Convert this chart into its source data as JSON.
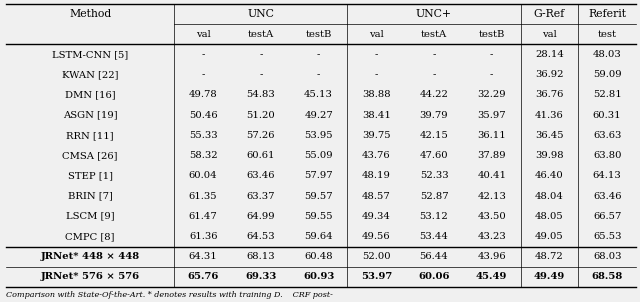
{
  "caption": "Comparison with State-Of-the-Art. * denotes results with training D.    CRF post-",
  "rows": [
    [
      "LSTM-CNN [5]",
      "-",
      "-",
      "-",
      "-",
      "-",
      "-",
      "28.14",
      "48.03"
    ],
    [
      "KWAN [22]",
      "-",
      "-",
      "-",
      "-",
      "-",
      "-",
      "36.92",
      "59.09"
    ],
    [
      "DMN [16]",
      "49.78",
      "54.83",
      "45.13",
      "38.88",
      "44.22",
      "32.29",
      "36.76",
      "52.81"
    ],
    [
      "ASGN [19]",
      "50.46",
      "51.20",
      "49.27",
      "38.41",
      "39.79",
      "35.97",
      "41.36",
      "60.31"
    ],
    [
      "RRN [11]",
      "55.33",
      "57.26",
      "53.95",
      "39.75",
      "42.15",
      "36.11",
      "36.45",
      "63.63"
    ],
    [
      "CMSA [26]",
      "58.32",
      "60.61",
      "55.09",
      "43.76",
      "47.60",
      "37.89",
      "39.98",
      "63.80"
    ],
    [
      "STEP [1]",
      "60.04",
      "63.46",
      "57.97",
      "48.19",
      "52.33",
      "40.41",
      "46.40",
      "64.13"
    ],
    [
      "BRIN [7]",
      "61.35",
      "63.37",
      "59.57",
      "48.57",
      "52.87",
      "42.13",
      "48.04",
      "63.46"
    ],
    [
      "LSCM [9]",
      "61.47",
      "64.99",
      "59.55",
      "49.34",
      "53.12",
      "43.50",
      "48.05",
      "66.57"
    ],
    [
      "CMPC [8]",
      "61.36",
      "64.53",
      "59.64",
      "49.56",
      "53.44",
      "43.23",
      "49.05",
      "65.53"
    ],
    [
      "JRNet* 448 × 448",
      "64.31",
      "68.13",
      "60.48",
      "52.00",
      "56.44",
      "43.96",
      "48.72",
      "68.03"
    ],
    [
      "JRNet* 576 × 576",
      "65.76",
      "69.33",
      "60.93",
      "53.97",
      "60.06",
      "45.49",
      "49.49",
      "68.58"
    ]
  ],
  "col_widths_ratio": [
    2.1,
    0.72,
    0.72,
    0.72,
    0.72,
    0.72,
    0.72,
    0.72,
    0.72
  ],
  "figsize": [
    6.4,
    3.02
  ],
  "dpi": 100,
  "fs_data": 7.2,
  "fs_header1": 7.8,
  "fs_header2": 7.2,
  "fs_caption": 5.8,
  "bg_color": "#f0f0f0"
}
